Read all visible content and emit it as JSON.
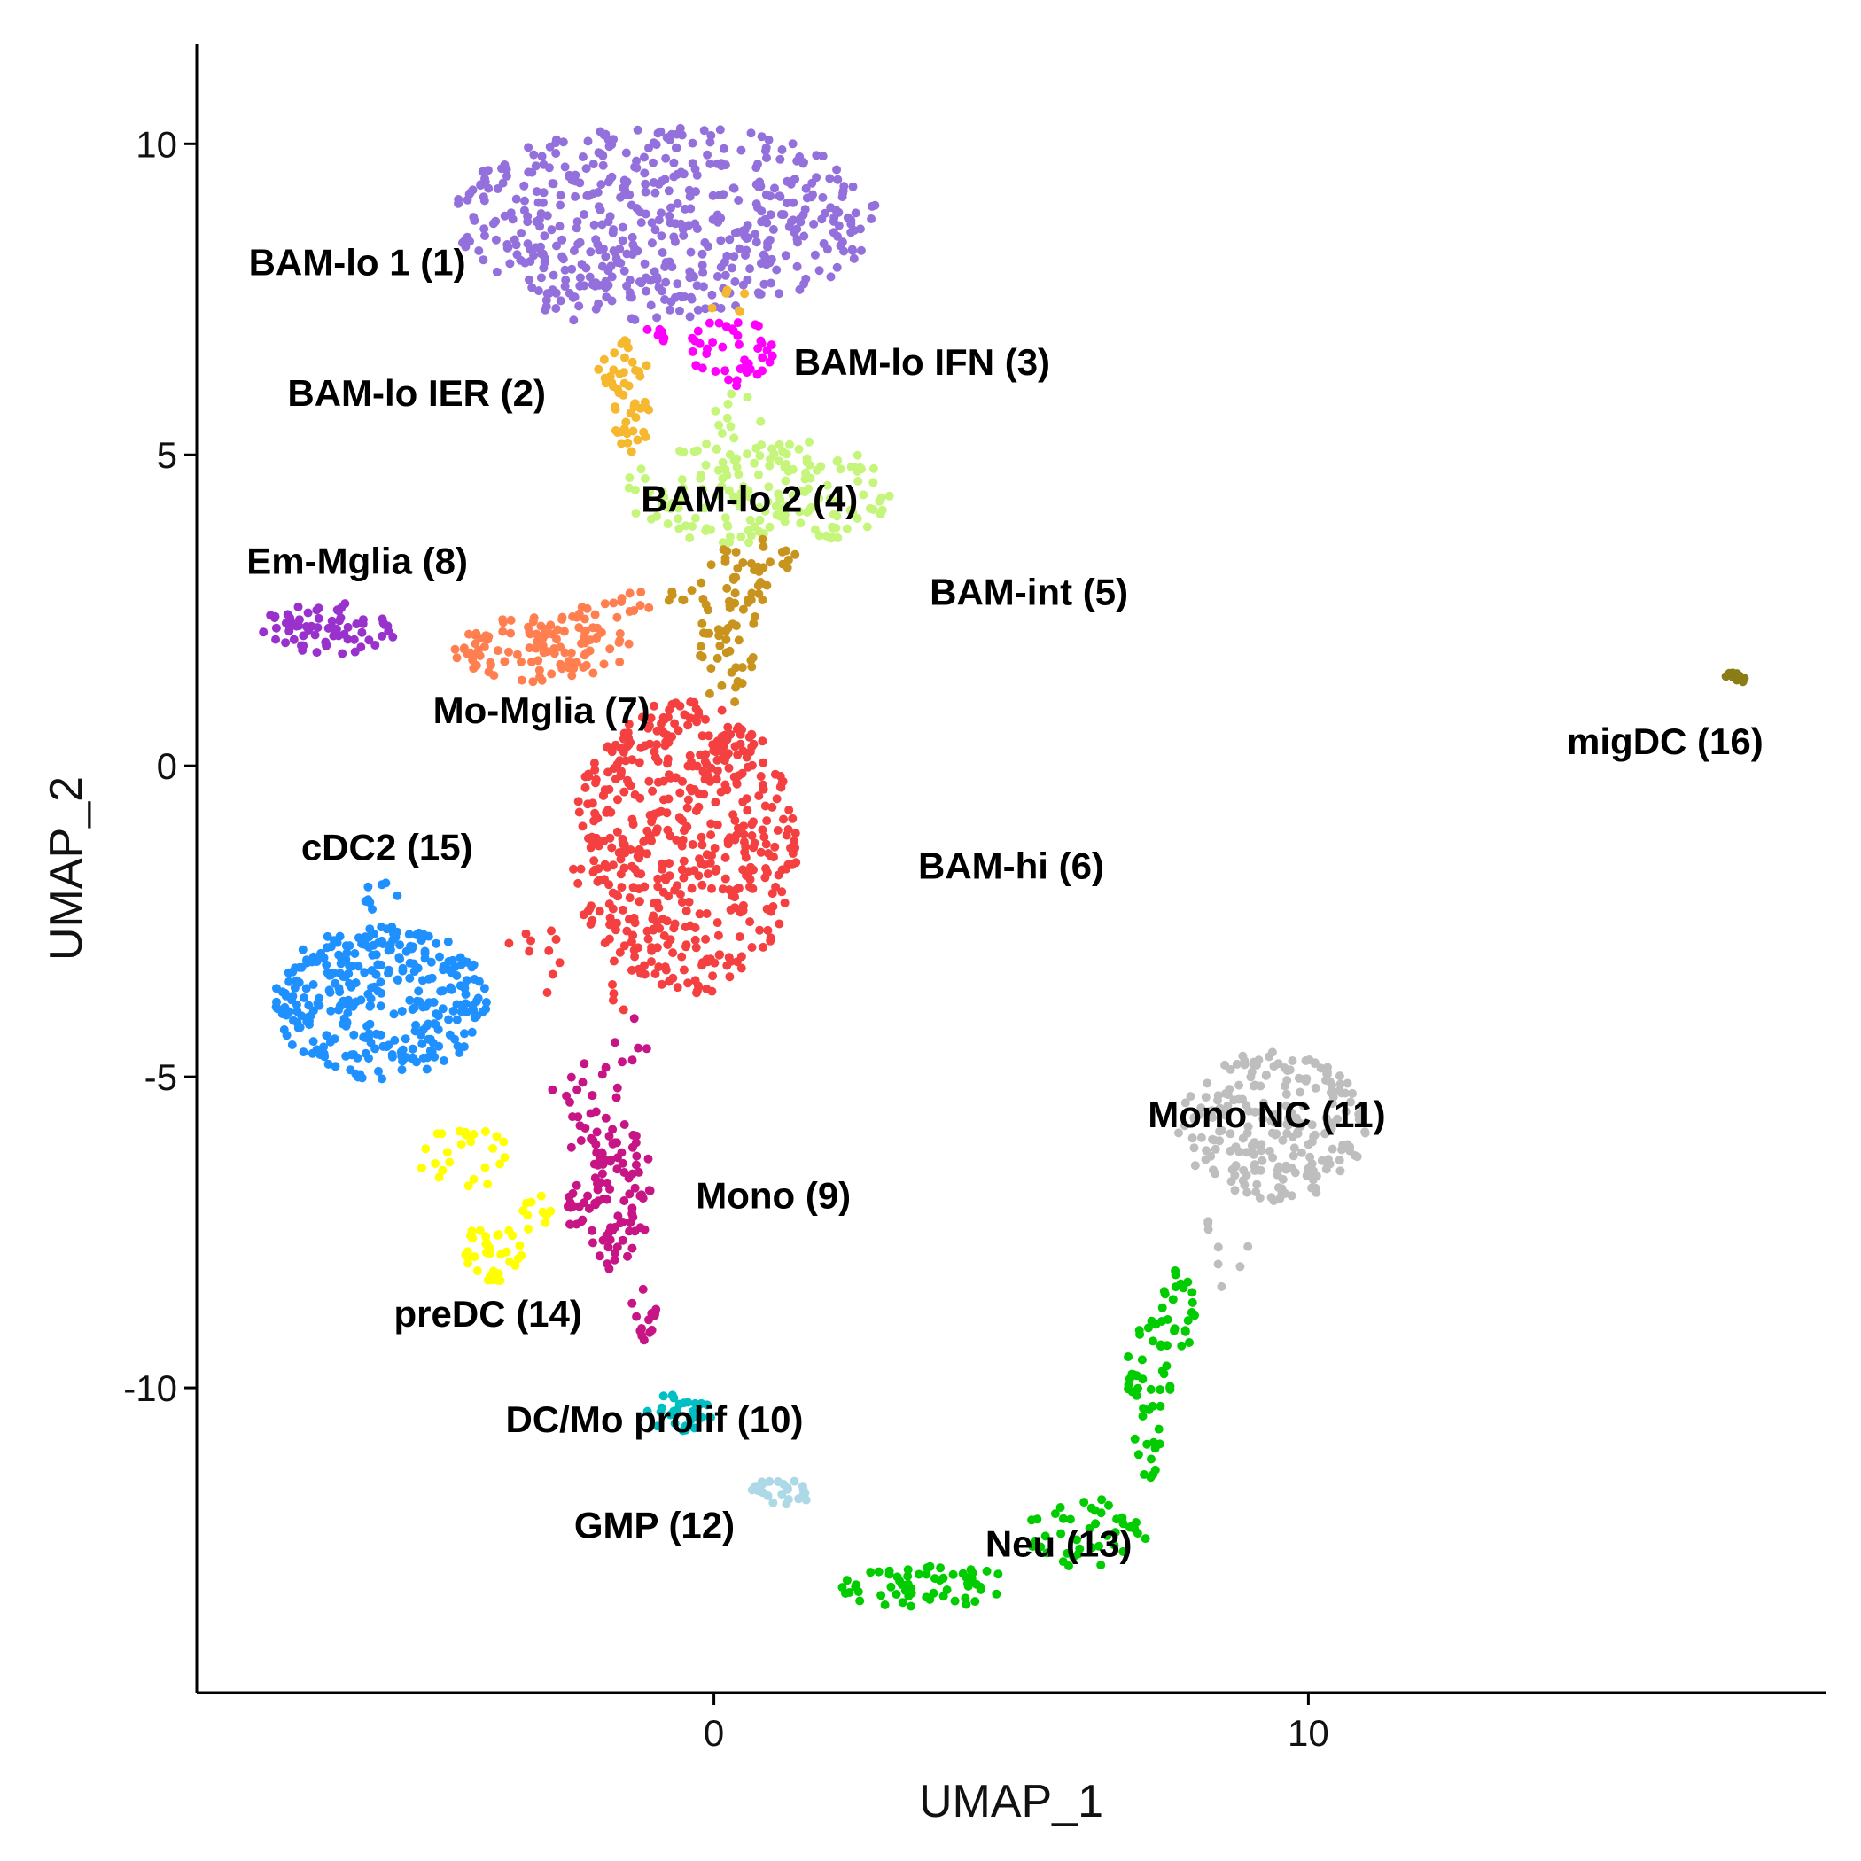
{
  "chart_data": {
    "type": "scatter",
    "xlabel": "UMAP_1",
    "ylabel": "UMAP_2",
    "xlim": [
      -8.7,
      18.7
    ],
    "ylim": [
      -14.9,
      11.6
    ],
    "x_ticks": [
      0,
      10
    ],
    "y_ticks": [
      10,
      5,
      0,
      -5,
      -10
    ],
    "grid": false,
    "legend": "none",
    "clusters": [
      {
        "name": "BAM-lo 1 (1)",
        "color": "#9370DB",
        "label_pos": [
          -6.0,
          8.1
        ],
        "blobs": [
          {
            "cx": -0.8,
            "cy": 8.8,
            "rx": 3.6,
            "ry": 1.5,
            "n": 480
          },
          {
            "cx": -1.5,
            "cy": 7.5,
            "rx": 1.6,
            "ry": 0.4,
            "n": 40
          }
        ]
      },
      {
        "name": "BAM-lo IER (2)",
        "color": "#F5B82E",
        "label_pos": [
          -5.0,
          6.0
        ],
        "blobs": [
          {
            "cx": -1.5,
            "cy": 6.4,
            "rx": 0.45,
            "ry": 0.5,
            "n": 25
          },
          {
            "cx": -1.4,
            "cy": 5.5,
            "rx": 0.35,
            "ry": 0.5,
            "n": 25
          },
          {
            "cx": 0.3,
            "cy": 7.5,
            "rx": 0.5,
            "ry": 0.3,
            "n": 6
          }
        ]
      },
      {
        "name": "BAM-lo IFN (3)",
        "color": "#FF00FF",
        "label_pos": [
          3.5,
          6.5
        ],
        "blobs": [
          {
            "cx": 0.3,
            "cy": 6.7,
            "rx": 0.7,
            "ry": 0.6,
            "n": 40
          },
          {
            "cx": -0.7,
            "cy": 7.0,
            "rx": 0.5,
            "ry": 0.3,
            "n": 8
          }
        ]
      },
      {
        "name": "BAM-lo 2 (4)",
        "color": "#C5F57A",
        "label_pos": [
          0.6,
          4.3
        ],
        "blobs": [
          {
            "cx": 0.8,
            "cy": 4.4,
            "rx": 2.3,
            "ry": 0.9,
            "n": 180
          },
          {
            "cx": 0.4,
            "cy": 5.6,
            "rx": 0.4,
            "ry": 0.5,
            "n": 10
          }
        ]
      },
      {
        "name": "BAM-int (5)",
        "color": "#C8941E",
        "label_pos": [
          5.3,
          2.8
        ],
        "blobs": [
          {
            "cx": 0.1,
            "cy": 2.8,
            "rx": 0.9,
            "ry": 0.7,
            "n": 50
          },
          {
            "cx": 0.2,
            "cy": 1.6,
            "rx": 0.5,
            "ry": 0.7,
            "n": 25
          },
          {
            "cx": 1.0,
            "cy": 3.4,
            "rx": 0.5,
            "ry": 0.3,
            "n": 10
          }
        ]
      },
      {
        "name": "BAM-hi (6)",
        "color": "#F44040",
        "label_pos": [
          5.0,
          -1.6
        ],
        "blobs": [
          {
            "cx": -0.5,
            "cy": -1.3,
            "rx": 1.9,
            "ry": 2.4,
            "n": 520
          },
          {
            "cx": -2.9,
            "cy": -3.1,
            "rx": 0.6,
            "ry": 0.6,
            "n": 10
          },
          {
            "cx": -1.5,
            "cy": -3.9,
            "rx": 0.3,
            "ry": 0.6,
            "n": 4
          }
        ]
      },
      {
        "name": "Mo-Mglia (7)",
        "color": "#FF7F50",
        "label_pos": [
          -2.9,
          0.9
        ],
        "blobs": [
          {
            "cx": -2.9,
            "cy": 1.9,
            "rx": 1.6,
            "ry": 0.55,
            "n": 110
          },
          {
            "cx": -1.7,
            "cy": 2.6,
            "rx": 0.7,
            "ry": 0.3,
            "n": 15
          }
        ]
      },
      {
        "name": "Em-Mglia (8)",
        "color": "#9932CC",
        "label_pos": [
          -6.0,
          3.3
        ],
        "blobs": [
          {
            "cx": -6.5,
            "cy": 2.2,
            "rx": 1.2,
            "ry": 0.45,
            "n": 70
          }
        ]
      },
      {
        "name": "Mono (9)",
        "color": "#C71585",
        "label_pos": [
          1.0,
          -6.9
        ],
        "blobs": [
          {
            "cx": -1.8,
            "cy": -6.8,
            "rx": 0.75,
            "ry": 1.3,
            "n": 110
          },
          {
            "cx": -2.2,
            "cy": -5.2,
            "rx": 0.6,
            "ry": 0.5,
            "n": 15
          },
          {
            "cx": -1.2,
            "cy": -8.8,
            "rx": 0.25,
            "ry": 0.6,
            "n": 15
          },
          {
            "cx": -1.4,
            "cy": -4.4,
            "rx": 0.3,
            "ry": 0.5,
            "n": 6
          }
        ]
      },
      {
        "name": "DC/Mo prolif (10)",
        "color": "#00BFC4",
        "label_pos": [
          -1.0,
          -10.5
        ],
        "blobs": [
          {
            "cx": -0.6,
            "cy": -10.4,
            "rx": 0.6,
            "ry": 0.3,
            "n": 30
          }
        ]
      },
      {
        "name": "Mono NC (11)",
        "color": "#BEBEBE",
        "label_pos": [
          9.3,
          -5.6
        ],
        "blobs": [
          {
            "cx": 9.4,
            "cy": -5.8,
            "rx": 1.6,
            "ry": 1.2,
            "n": 230
          },
          {
            "cx": 8.6,
            "cy": -7.8,
            "rx": 0.4,
            "ry": 0.8,
            "n": 8
          }
        ]
      },
      {
        "name": "GMP (12)",
        "color": "#ADD8E6",
        "label_pos": [
          -1.0,
          -12.2
        ],
        "blobs": [
          {
            "cx": 1.1,
            "cy": -11.7,
            "rx": 0.5,
            "ry": 0.25,
            "n": 25
          }
        ]
      },
      {
        "name": "Neu (13)",
        "color": "#00CC00",
        "label_pos": [
          5.8,
          -12.5
        ],
        "blobs": [
          {
            "cx": 3.6,
            "cy": -13.2,
            "rx": 1.5,
            "ry": 0.35,
            "n": 60
          },
          {
            "cx": 6.2,
            "cy": -12.3,
            "rx": 1.1,
            "ry": 0.6,
            "n": 45
          },
          {
            "cx": 7.3,
            "cy": -10.2,
            "rx": 0.4,
            "ry": 1.3,
            "n": 45
          },
          {
            "cx": 7.8,
            "cy": -8.8,
            "rx": 0.3,
            "ry": 0.7,
            "n": 25
          }
        ]
      },
      {
        "name": "preDC (14)",
        "color": "#FFFF00",
        "label_pos": [
          -3.8,
          -8.8
        ],
        "blobs": [
          {
            "cx": -3.7,
            "cy": -7.8,
            "rx": 0.5,
            "ry": 0.5,
            "n": 35
          },
          {
            "cx": -4.2,
            "cy": -6.3,
            "rx": 0.8,
            "ry": 0.5,
            "n": 25
          },
          {
            "cx": -3.0,
            "cy": -7.2,
            "rx": 0.4,
            "ry": 0.3,
            "n": 10
          }
        ]
      },
      {
        "name": "cDC2 (15)",
        "color": "#1E90FF",
        "label_pos": [
          -5.5,
          -1.3
        ],
        "blobs": [
          {
            "cx": -5.6,
            "cy": -3.8,
            "rx": 1.8,
            "ry": 1.25,
            "n": 330
          },
          {
            "cx": -5.6,
            "cy": -2.1,
            "rx": 0.4,
            "ry": 0.3,
            "n": 8
          }
        ]
      },
      {
        "name": "migDC (16)",
        "color": "#8B7D16",
        "label_pos": [
          16.0,
          0.4
        ],
        "blobs": [
          {
            "cx": 17.2,
            "cy": 1.45,
            "rx": 0.2,
            "ry": 0.12,
            "n": 10
          }
        ]
      }
    ]
  }
}
